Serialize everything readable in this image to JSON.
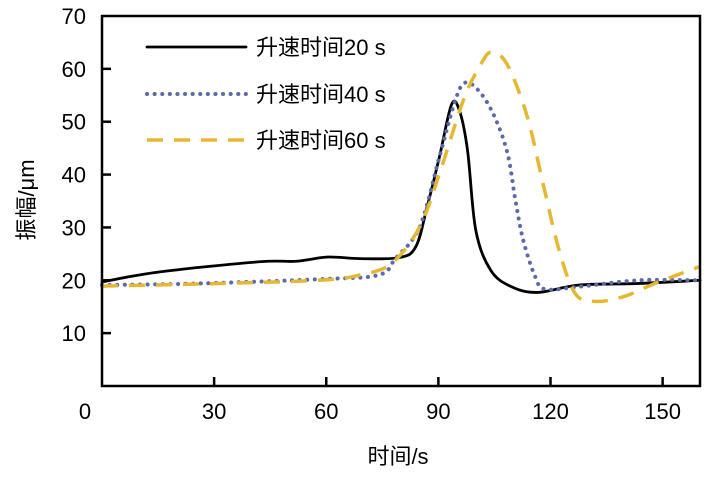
{
  "chart_data": {
    "type": "line",
    "title": "",
    "xlabel": "时间/s",
    "ylabel": "振幅/μm",
    "xlim": [
      0,
      160
    ],
    "ylim": [
      0,
      70
    ],
    "xticks": [
      "0",
      "30",
      "60",
      "90",
      "120",
      "150"
    ],
    "yticks": [
      "10",
      "20",
      "30",
      "40",
      "50",
      "60",
      "70"
    ],
    "grid": false,
    "legend_position": "top-left",
    "series": [
      {
        "name": "升速时间20 s",
        "color": "#000000",
        "style": "solid",
        "x": [
          0,
          15.5,
          42,
          52,
          60.4,
          69,
          79.6,
          84,
          87,
          90.3,
          93.5,
          95.6,
          97.8,
          100,
          104,
          109.5,
          116.5,
          127.7,
          143.7,
          160
        ],
        "y": [
          19.7,
          21.6,
          23.5,
          23.6,
          24.4,
          24.1,
          24.3,
          26.4,
          33.9,
          43.4,
          53.2,
          52.2,
          44.6,
          29.5,
          21.9,
          18.8,
          17.7,
          19.1,
          19.4,
          20
        ]
      },
      {
        "name": "升速时间40 s",
        "color": "#5b6aa8",
        "style": "dotted",
        "x": [
          0,
          26,
          58,
          74,
          78.5,
          85,
          90.3,
          94.5,
          97.2,
          101,
          105,
          108.5,
          110.6,
          112.7,
          115.9,
          118.6,
          127.7,
          143.7,
          160
        ],
        "y": [
          19.1,
          19.4,
          20.2,
          21,
          24.1,
          30.1,
          43.4,
          54,
          57.4,
          55.7,
          51,
          44,
          35.2,
          27.6,
          20.7,
          18.3,
          18.8,
          20,
          20
        ]
      },
      {
        "name": "升速时间60 s",
        "color": "#e6b832",
        "style": "dashed",
        "x": [
          0,
          26,
          58,
          69,
          77.5,
          85,
          90.3,
          96.7,
          101,
          104.2,
          108.5,
          113.8,
          118,
          122.3,
          126.6,
          132,
          139.5,
          149,
          160
        ],
        "y": [
          18.9,
          19.3,
          20,
          21,
          23.2,
          30.1,
          40.2,
          54.1,
          60.4,
          63.2,
          60.7,
          50.9,
          38.3,
          25.7,
          17.5,
          16,
          16.9,
          19.7,
          22.6
        ]
      }
    ]
  }
}
